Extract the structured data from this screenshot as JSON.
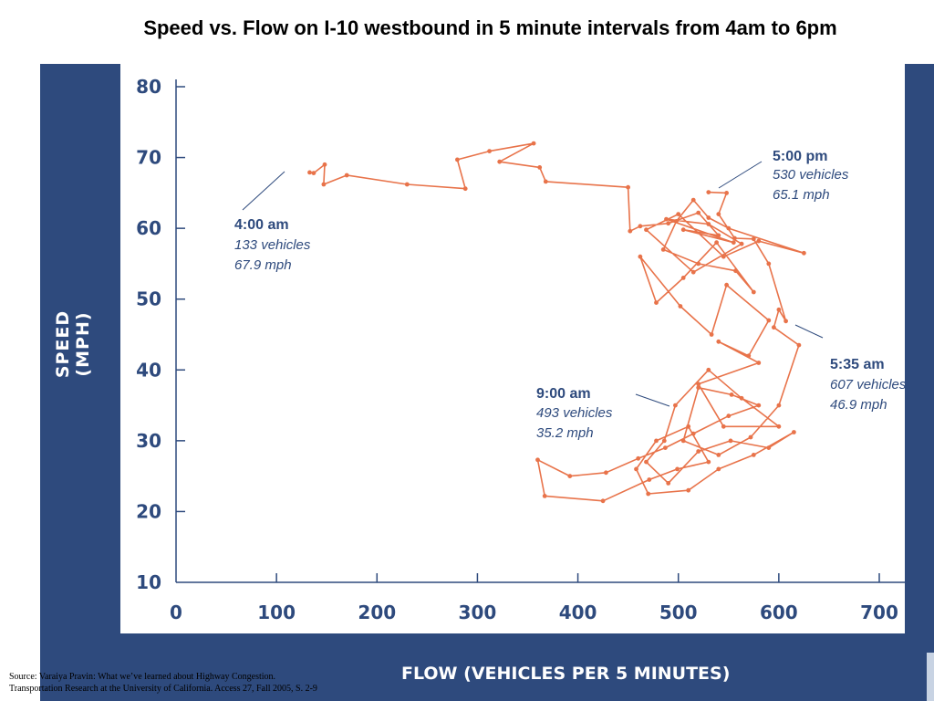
{
  "title": "Speed vs. Flow on I-10 westbound in 5 minute intervals from 4am to 6pm",
  "source": {
    "line1": "Source: Varaiya Pravin: What we’ve learned about Highway Congestion.",
    "line2": "Transportation Research at the University of California. Access 27, Fall 2005, S. 2-9"
  },
  "colors": {
    "frame": "#2e4a7d",
    "series": "#e8734a",
    "text": "#2e4a7d"
  },
  "chart_data": {
    "type": "line",
    "xlabel": "FLOW (VEHICLES PER 5 MINUTES)",
    "ylabel": "SPEED (MPH)",
    "xlim": [
      0,
      700
    ],
    "ylim": [
      10,
      80
    ],
    "xticks": [
      0,
      100,
      200,
      300,
      400,
      500,
      600,
      700
    ],
    "yticks": [
      10,
      20,
      30,
      40,
      50,
      60,
      70,
      80
    ],
    "grid": false,
    "series": [
      {
        "points": [
          [
            133,
            67.9
          ],
          [
            137,
            67.8
          ],
          [
            148,
            69.0
          ],
          [
            147,
            66.2
          ],
          [
            170,
            67.5
          ],
          [
            230,
            66.2
          ],
          [
            288,
            65.6
          ],
          [
            280,
            69.7
          ],
          [
            312,
            70.9
          ],
          [
            356,
            72.0
          ],
          [
            322,
            69.4
          ],
          [
            362,
            68.6
          ],
          [
            368,
            66.6
          ],
          [
            450,
            65.8
          ],
          [
            452,
            59.6
          ],
          [
            462,
            60.3
          ],
          [
            490,
            60.7
          ],
          [
            520,
            62.2
          ],
          [
            540,
            59.0
          ],
          [
            505,
            59.8
          ],
          [
            555,
            58.0
          ],
          [
            488,
            61.3
          ],
          [
            530,
            60.6
          ],
          [
            563,
            57.8
          ],
          [
            515,
            53.8
          ],
          [
            468,
            59.8
          ],
          [
            500,
            62.0
          ],
          [
            545,
            56.0
          ],
          [
            580,
            58.2
          ],
          [
            625,
            56.5
          ],
          [
            550,
            60.0
          ],
          [
            530,
            61.5
          ],
          [
            515,
            64.0
          ],
          [
            498,
            61.0
          ],
          [
            485,
            57.0
          ],
          [
            520,
            55.0
          ],
          [
            557,
            54.0
          ],
          [
            575,
            51.0
          ],
          [
            538,
            58.0
          ],
          [
            505,
            53.0
          ],
          [
            478,
            49.5
          ],
          [
            462,
            56.0
          ],
          [
            502,
            49.0
          ],
          [
            533,
            45.0
          ],
          [
            548,
            52.0
          ],
          [
            590,
            47.0
          ],
          [
            570,
            42.0
          ],
          [
            540,
            44.0
          ],
          [
            580,
            41.0
          ],
          [
            520,
            38.0
          ],
          [
            545,
            32.0
          ],
          [
            600,
            32.0
          ],
          [
            563,
            36.0
          ],
          [
            530,
            40.0
          ],
          [
            497,
            35.0
          ],
          [
            486,
            30.0
          ],
          [
            468,
            27.0
          ],
          [
            490,
            24.0
          ],
          [
            520,
            28.5
          ],
          [
            552,
            30.0
          ],
          [
            590,
            29.0
          ],
          [
            615,
            31.2
          ],
          [
            575,
            28.0
          ],
          [
            540,
            26.0
          ],
          [
            510,
            23.0
          ],
          [
            470,
            22.5
          ],
          [
            458,
            26.0
          ],
          [
            478,
            30.0
          ],
          [
            510,
            32.0
          ],
          [
            530,
            27.0
          ],
          [
            499,
            26.0
          ],
          [
            471,
            24.5
          ],
          [
            425,
            21.5
          ],
          [
            367,
            22.2
          ],
          [
            360,
            27.3
          ],
          [
            392,
            25.0
          ],
          [
            428,
            25.5
          ],
          [
            460,
            27.5
          ],
          [
            487,
            29.0
          ],
          [
            515,
            31.0
          ],
          [
            550,
            33.5
          ],
          [
            580,
            35.0
          ],
          [
            553,
            36.5
          ],
          [
            520,
            37.5
          ],
          [
            505,
            30.0
          ],
          [
            540,
            28.0
          ],
          [
            572,
            30.5
          ],
          [
            600,
            35.0
          ],
          [
            620,
            43.5
          ],
          [
            595,
            46.0
          ],
          [
            600,
            48.5
          ],
          [
            607,
            46.9
          ],
          [
            590,
            55.0
          ],
          [
            575,
            58.5
          ],
          [
            556,
            58.6
          ],
          [
            540,
            62.0
          ],
          [
            548,
            65.0
          ],
          [
            530,
            65.1
          ]
        ]
      }
    ]
  },
  "annotations": [
    {
      "time": "4:00 am",
      "vehicles": "133 vehicles",
      "speed": "67.9 mph"
    },
    {
      "time": "5:00 pm",
      "vehicles": "530 vehicles",
      "speed": "65.1 mph"
    },
    {
      "time": "5:35 am",
      "vehicles": "607 vehicles",
      "speed": "46.9 mph"
    },
    {
      "time": "9:00 am",
      "vehicles": "493 vehicles",
      "speed": "35.2 mph"
    }
  ]
}
